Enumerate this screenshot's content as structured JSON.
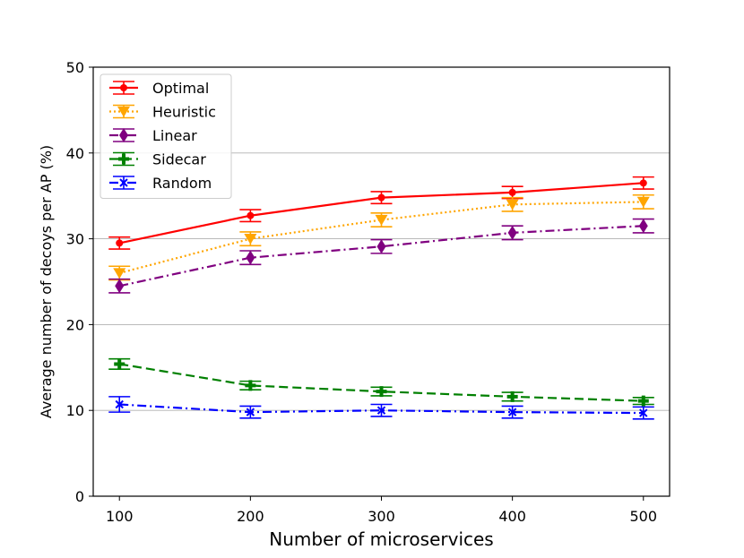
{
  "chart_data": {
    "type": "line",
    "title": "",
    "xlabel": "Number of microservices",
    "ylabel": "Average number of decoys per AP (%)",
    "x": [
      100,
      200,
      300,
      400,
      500
    ],
    "x_ticks": [
      "100",
      "200",
      "300",
      "400",
      "500"
    ],
    "xlim": [
      80,
      520
    ],
    "ylim": [
      0,
      50
    ],
    "y_ticks": [
      "0",
      "10",
      "20",
      "30",
      "40",
      "50"
    ],
    "y_tick_values": [
      0,
      10,
      20,
      30,
      40,
      50
    ],
    "grid": "horizontal",
    "legend_position": "top-left",
    "series": [
      {
        "name": "Optimal",
        "color": "#ff0000",
        "linestyle": "solid",
        "marker": "circle",
        "values": [
          29.5,
          32.7,
          34.8,
          35.4,
          36.5
        ],
        "errors": [
          0.7,
          0.7,
          0.7,
          0.7,
          0.7
        ]
      },
      {
        "name": "Heuristic",
        "color": "#ffa500",
        "linestyle": "dotted",
        "marker": "triangle-down",
        "values": [
          26.0,
          30.0,
          32.2,
          34.0,
          34.3
        ],
        "errors": [
          0.8,
          0.8,
          0.8,
          0.8,
          0.8
        ]
      },
      {
        "name": "Linear",
        "color": "#800080",
        "linestyle": "dashdot",
        "marker": "diamond",
        "values": [
          24.5,
          27.8,
          29.1,
          30.7,
          31.5
        ],
        "errors": [
          0.8,
          0.8,
          0.8,
          0.8,
          0.8
        ]
      },
      {
        "name": "Sidecar",
        "color": "#008000",
        "linestyle": "dashed",
        "marker": "plus",
        "values": [
          15.4,
          12.9,
          12.2,
          11.6,
          11.1
        ],
        "errors": [
          0.6,
          0.5,
          0.5,
          0.5,
          0.4
        ]
      },
      {
        "name": "Random",
        "color": "#0000ff",
        "linestyle": "dashdot",
        "marker": "cross",
        "values": [
          10.7,
          9.8,
          10.0,
          9.8,
          9.7
        ],
        "errors": [
          0.9,
          0.7,
          0.7,
          0.7,
          0.7
        ]
      }
    ]
  }
}
